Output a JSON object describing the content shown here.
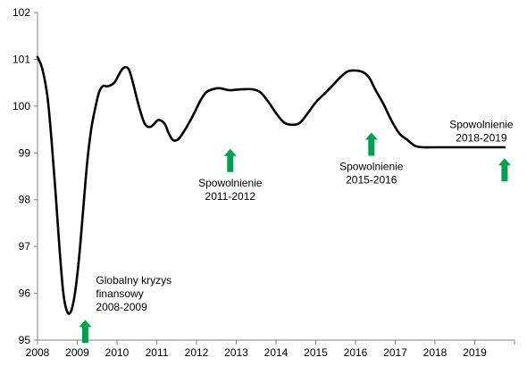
{
  "chart_data": {
    "type": "line",
    "title": "",
    "xlabel": "",
    "ylabel": "",
    "grid": false,
    "legend": "none",
    "x_ticks": [
      "2008",
      "2009",
      "2010",
      "2011",
      "2012",
      "2013",
      "2014",
      "2015",
      "2016",
      "2017",
      "2018",
      "2019"
    ],
    "y_ticks": [
      "95",
      "96",
      "97",
      "98",
      "99",
      "100",
      "101",
      "102"
    ],
    "xlim": [
      2008,
      2020
    ],
    "ylim": [
      95,
      102
    ],
    "colors": {
      "line": "#000000",
      "arrow": "#00a050",
      "axis": "#808080"
    },
    "series": [
      {
        "x": [
          2008.0,
          2008.12,
          2008.25,
          2008.35,
          2008.45,
          2008.55,
          2008.65,
          2008.75,
          2008.85,
          2008.95,
          2009.05,
          2009.15,
          2009.25,
          2009.35,
          2009.45,
          2009.55,
          2009.65,
          2009.75,
          2009.85,
          2009.95,
          2010.1,
          2010.2,
          2010.3,
          2010.4,
          2010.55,
          2010.7,
          2010.85,
          2011.0,
          2011.08,
          2011.2,
          2011.3,
          2011.4,
          2011.5,
          2011.6,
          2011.75,
          2011.9,
          2012.0,
          2012.1,
          2012.25,
          2012.45,
          2012.6,
          2012.75,
          2012.85,
          2013.0,
          2013.2,
          2013.4,
          2013.6,
          2013.8,
          2014.0,
          2014.2,
          2014.4,
          2014.6,
          2014.8,
          2015.0,
          2015.2,
          2015.4,
          2015.6,
          2015.8,
          2016.0,
          2016.2,
          2016.35,
          2016.5,
          2016.7,
          2016.9,
          2017.1,
          2017.3,
          2017.5,
          2017.7,
          2017.9,
          2018.0,
          2018.2,
          2018.4,
          2018.6,
          2018.8,
          2019.0,
          2019.2,
          2019.4,
          2019.6,
          2019.75
        ],
        "y": [
          101.05,
          100.8,
          100.2,
          99.3,
          98.2,
          97.0,
          96.0,
          95.6,
          95.63,
          96.05,
          96.8,
          97.8,
          98.8,
          99.5,
          99.95,
          100.3,
          100.43,
          100.42,
          100.45,
          100.52,
          100.75,
          100.83,
          100.78,
          100.5,
          100.0,
          99.62,
          99.56,
          99.68,
          99.7,
          99.62,
          99.42,
          99.28,
          99.27,
          99.35,
          99.55,
          99.78,
          99.95,
          100.12,
          100.3,
          100.37,
          100.38,
          100.35,
          100.34,
          100.35,
          100.36,
          100.36,
          100.3,
          100.1,
          99.85,
          99.65,
          99.6,
          99.64,
          99.85,
          100.08,
          100.25,
          100.42,
          100.6,
          100.74,
          100.76,
          100.72,
          100.6,
          100.35,
          100.05,
          99.7,
          99.42,
          99.28,
          99.15,
          99.12,
          99.12,
          99.12,
          99.12,
          99.12,
          99.12,
          99.12,
          99.12,
          99.12,
          99.12,
          99.12,
          99.12
        ]
      }
    ],
    "annotations": [
      {
        "lines": [
          "Globalny kryzys",
          "finansowy",
          "2008-2009"
        ],
        "x": 2009.2,
        "y": 95.55
      },
      {
        "lines": [
          "Spowolnienie",
          "2011-2012"
        ],
        "x": 2012.85,
        "y": 99.2
      },
      {
        "lines": [
          "Spowolnienie",
          "2015-2016"
        ],
        "x": 2016.4,
        "y": 99.55
      },
      {
        "lines": [
          "Spowolnienie",
          "2018-2019"
        ],
        "x": 2019.75,
        "y": 99.0
      }
    ]
  }
}
